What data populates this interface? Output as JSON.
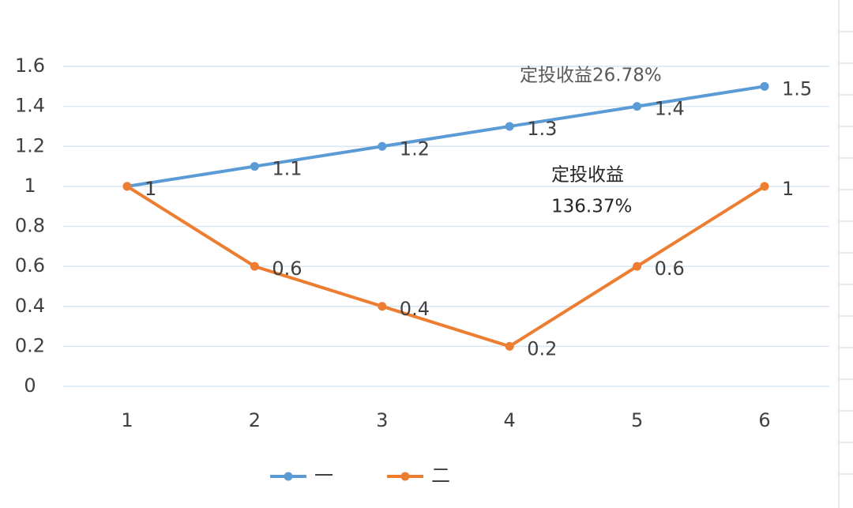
{
  "chart_data": {
    "type": "line",
    "categories": [
      "1",
      "2",
      "3",
      "4",
      "5",
      "6"
    ],
    "series": [
      {
        "name": "一",
        "color": "#5b9bd5",
        "values": [
          1,
          1.1,
          1.2,
          1.3,
          1.4,
          1.5
        ]
      },
      {
        "name": "二",
        "color": "#ed7d31",
        "values": [
          1,
          0.6,
          0.4,
          0.2,
          0.6,
          1
        ]
      }
    ],
    "ylim": [
      0,
      1.6
    ],
    "yticks": [
      0,
      0.2,
      0.4,
      0.6,
      0.8,
      1,
      1.2,
      1.4,
      1.6
    ],
    "grid": true,
    "legend": "bottom",
    "annotations": [
      [
        "定投收益26.78%"
      ],
      [
        "定投收益",
        "136.37%"
      ]
    ]
  }
}
